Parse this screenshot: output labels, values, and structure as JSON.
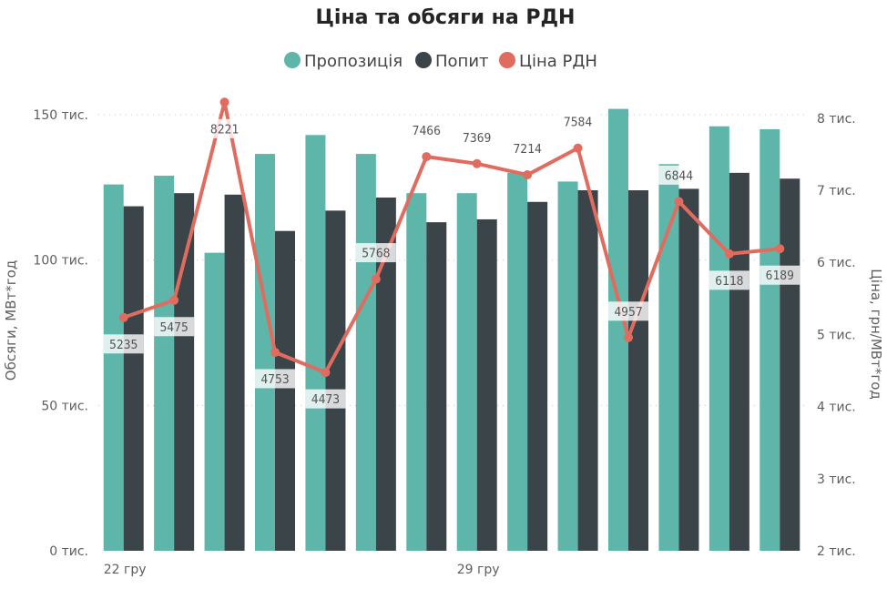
{
  "chart_data": {
    "type": "bar",
    "title": "Ціна та обсяги на РДН",
    "x_tick_labels": [
      "22 гру",
      "",
      "",
      "",
      "",
      "",
      "",
      "29 гру",
      "",
      "",
      "",
      "",
      "",
      ""
    ],
    "series": [
      {
        "name": "Пропозиція",
        "kind": "bar",
        "axis": "left",
        "color": "#5eb5a9",
        "values": [
          126000,
          129000,
          102500,
          136500,
          143000,
          136500,
          123000,
          123000,
          130000,
          127000,
          152000,
          133000,
          146000,
          145000
        ]
      },
      {
        "name": "Попит",
        "kind": "bar",
        "axis": "left",
        "color": "#3b4448",
        "values": [
          118500,
          123000,
          122500,
          110000,
          117000,
          121500,
          113000,
          114000,
          120000,
          124000,
          124000,
          124500,
          130000,
          128000
        ]
      },
      {
        "name": "Ціна РДН",
        "kind": "line",
        "axis": "right",
        "color": "#e06c5f",
        "values": [
          5235,
          5475,
          8221,
          4753,
          4473,
          5768,
          7466,
          7369,
          7214,
          7584,
          4957,
          6844,
          6118,
          6189
        ],
        "data_labels": [
          "5235",
          "5475",
          "8221",
          "4753",
          "4473",
          "5768",
          "7466",
          "7369",
          "7214",
          "7584",
          "4957",
          "6844",
          "6118",
          "6189"
        ]
      }
    ],
    "y_left": {
      "label": "Обсяги, МВт*год",
      "range": [
        0,
        155000
      ],
      "ticks": [
        {
          "value": 0,
          "label": "0 тис."
        },
        {
          "value": 50000,
          "label": "50 тис."
        },
        {
          "value": 100000,
          "label": "100 тис."
        },
        {
          "value": 150000,
          "label": "150 тис."
        }
      ]
    },
    "y_right": {
      "label": "Ціна, грн/МВт*год",
      "range": [
        2000,
        8250
      ],
      "ticks": [
        {
          "value": 2000,
          "label": "2 тис."
        },
        {
          "value": 3000,
          "label": "3 тис."
        },
        {
          "value": 4000,
          "label": "4 тис."
        },
        {
          "value": 5000,
          "label": "5 тис."
        },
        {
          "value": 6000,
          "label": "6 тис."
        },
        {
          "value": 7000,
          "label": "7 тис."
        },
        {
          "value": 8000,
          "label": "8 тис."
        }
      ]
    },
    "grid": true,
    "legend_position": "top-center"
  }
}
